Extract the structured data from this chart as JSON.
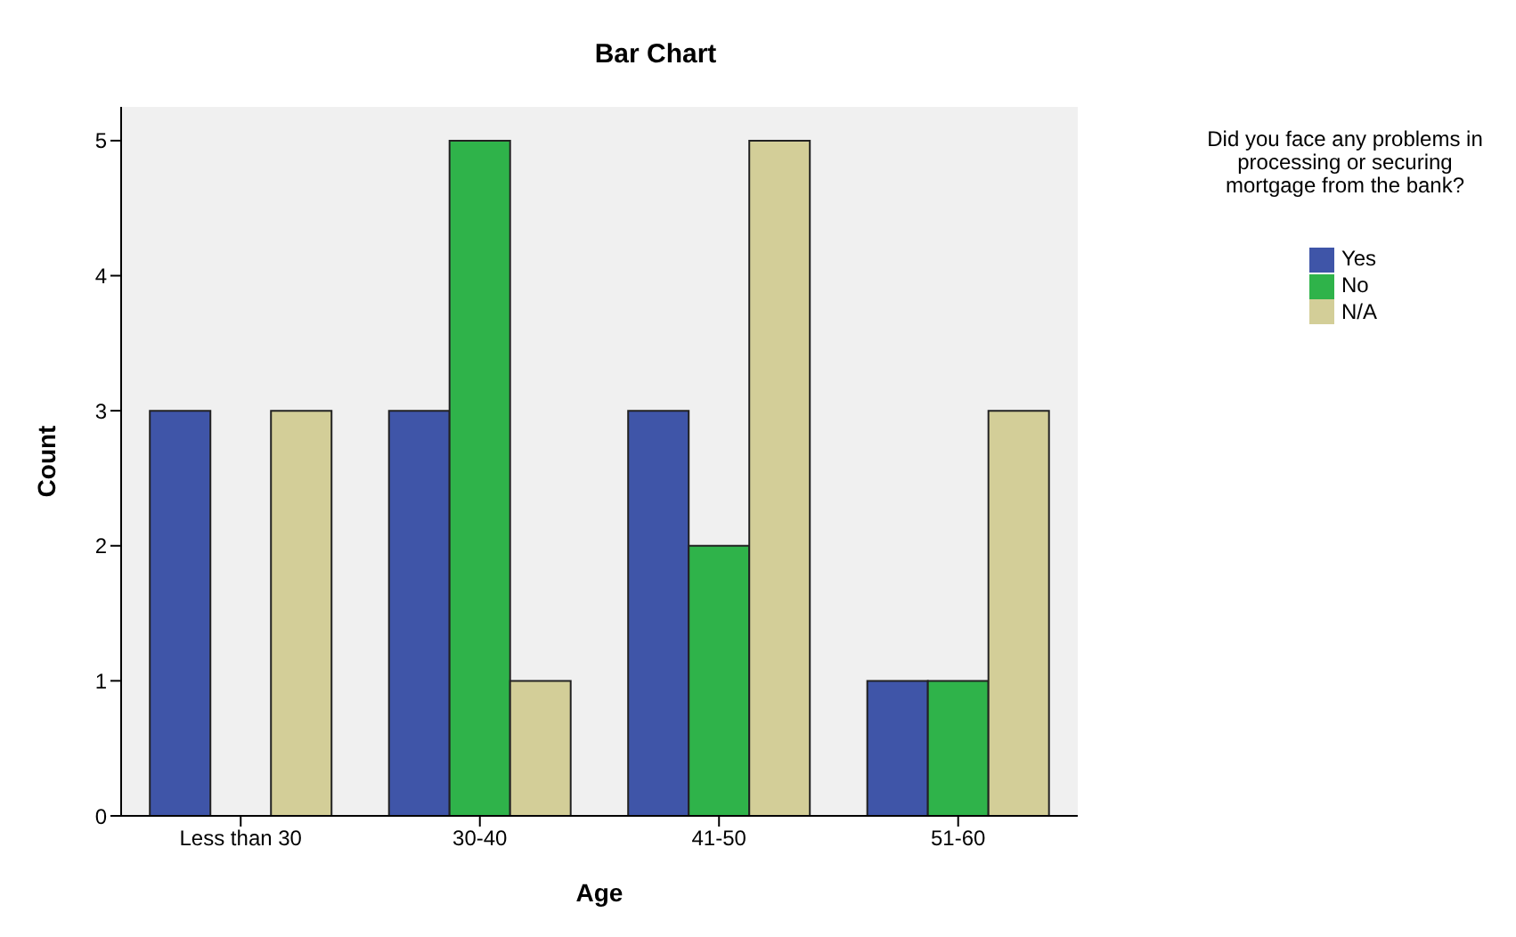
{
  "chart_data": {
    "type": "bar",
    "title": "Bar Chart",
    "xlabel": "Age",
    "ylabel": "Count",
    "legend_title": "Did you face any problems in processing or securing mortgage from the bank?",
    "categories": [
      "Less than 30",
      "30-40",
      "41-50",
      "51-60"
    ],
    "series": [
      {
        "name": "Yes",
        "color": "#3f55a8",
        "values": [
          3,
          3,
          3,
          1
        ]
      },
      {
        "name": "No",
        "color": "#2fb34a",
        "values": [
          0,
          5,
          2,
          1
        ]
      },
      {
        "name": "N/A",
        "color": "#d3ce98",
        "values": [
          3,
          1,
          5,
          3
        ]
      }
    ],
    "ylim": [
      0,
      5.25
    ],
    "yticks": [
      0,
      1,
      2,
      3,
      4,
      5
    ],
    "legend": "top right"
  }
}
